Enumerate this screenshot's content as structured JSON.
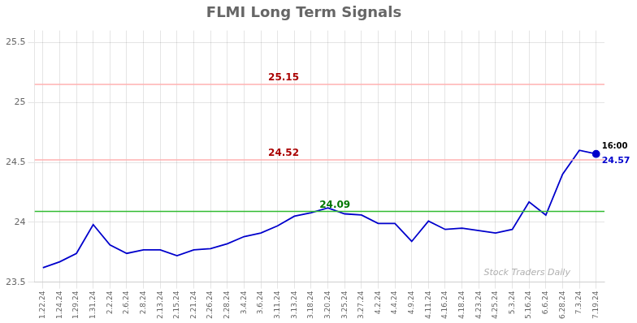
{
  "chart_data": {
    "type": "line",
    "title": "FLMI Long Term Signals",
    "categories": [
      "1.22.24",
      "1.24.24",
      "1.29.24",
      "1.31.24",
      "2.2.24",
      "2.6.24",
      "2.8.24",
      "2.13.24",
      "2.15.24",
      "2.21.24",
      "2.26.24",
      "2.28.24",
      "3.4.24",
      "3.6.24",
      "3.11.24",
      "3.13.24",
      "3.18.24",
      "3.20.24",
      "3.25.24",
      "3.27.24",
      "4.2.24",
      "4.4.24",
      "4.9.24",
      "4.11.24",
      "4.16.24",
      "4.18.24",
      "4.23.24",
      "4.25.24",
      "5.3.24",
      "5.16.24",
      "6.6.24",
      "6.28.24",
      "7.3.24",
      "7.19.24"
    ],
    "values": [
      23.62,
      23.67,
      23.74,
      23.98,
      23.81,
      23.74,
      23.77,
      23.77,
      23.72,
      23.77,
      23.78,
      23.82,
      23.88,
      23.91,
      23.97,
      24.05,
      24.08,
      24.12,
      24.07,
      24.06,
      23.99,
      23.99,
      23.84,
      24.01,
      23.94,
      23.95,
      23.93,
      23.91,
      23.94,
      24.17,
      24.06,
      24.4,
      24.6,
      24.57
    ],
    "color": "#0000cc",
    "ylim": [
      23.5,
      25.6
    ],
    "yticks": [
      23.5,
      24,
      24.5,
      25,
      25.5
    ],
    "grid": true,
    "reference_lines": [
      {
        "y": 24.09,
        "color": "#33bb33",
        "label": "24.09",
        "label_color": "#007700"
      },
      {
        "y": 24.52,
        "color": "#ffb0b0",
        "label": "24.52",
        "label_color": "#aa0000"
      },
      {
        "y": 25.15,
        "color": "#ffb0b0",
        "label": "25.15",
        "label_color": "#aa0000"
      }
    ],
    "last_point": {
      "marker": "circle",
      "color": "#0000cc",
      "labels": [
        {
          "text": "16:00",
          "color": "#000000"
        },
        {
          "text": "24.57",
          "color": "#0000cc"
        }
      ]
    },
    "watermark": {
      "text": "Stock Traders Daily",
      "color": "#b0b0b0"
    }
  }
}
